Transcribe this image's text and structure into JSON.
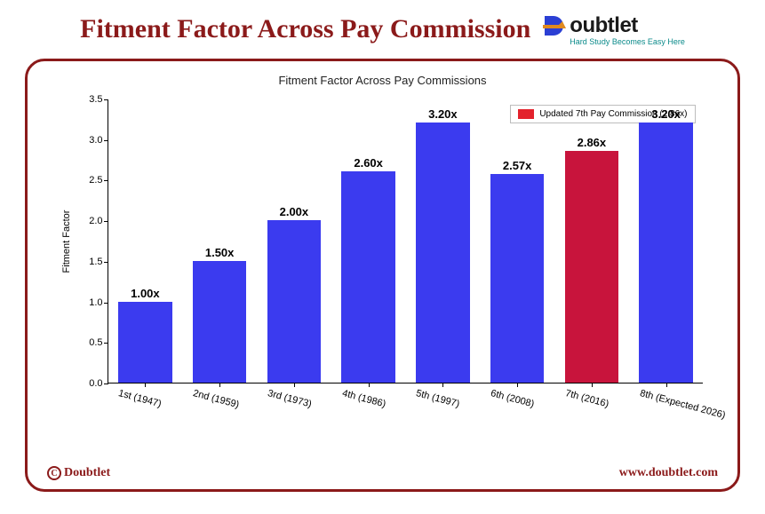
{
  "header": {
    "title": "Fitment Factor Across Pay Commission",
    "logo_text": "oubtlet",
    "tagline": "Hard Study Becomes Easy Here",
    "logo_colors": {
      "blue": "#2b3fd4",
      "orange": "#e08a1f"
    }
  },
  "panel": {
    "border_color": "#8b1a1a",
    "footer_brand": "Doubtlet",
    "footer_url": "www.doubtlet.com"
  },
  "chart": {
    "type": "bar",
    "title": "Fitment Factor Across Pay Commissions",
    "title_fontsize": 13,
    "ylabel": "Fitment Factor",
    "label_fontsize": 11,
    "categories": [
      "1st (1947)",
      "2nd (1959)",
      "3rd (1973)",
      "4th (1986)",
      "5th (1997)",
      "6th (2008)",
      "7th (2016)",
      "8th (Expected 2026)"
    ],
    "values": [
      1.0,
      1.5,
      2.0,
      2.6,
      3.2,
      2.57,
      2.86,
      3.2
    ],
    "value_labels": [
      "1.00x",
      "1.50x",
      "2.00x",
      "2.60x",
      "3.20x",
      "2.57x",
      "2.86x",
      "3.20x"
    ],
    "bar_colors": [
      "#3b3bef",
      "#3b3bef",
      "#3b3bef",
      "#3b3bef",
      "#3b3bef",
      "#3b3bef",
      "#c8143c",
      "#3b3bef"
    ],
    "bar_width": 0.72,
    "ylim": [
      0,
      3.5
    ],
    "ytick_step": 0.5,
    "yticks": [
      0.0,
      0.5,
      1.0,
      1.5,
      2.0,
      2.5,
      3.0,
      3.5
    ],
    "xtick_rotation_deg": 15,
    "background_color": "#ffffff",
    "axis_color": "#000000",
    "value_label_fontsize": 13,
    "value_label_fontweight": "bold",
    "legend": {
      "swatch_color": "#e3222c",
      "text": "Updated 7th Pay Commission (2.86x)",
      "position": "upper-right"
    }
  }
}
